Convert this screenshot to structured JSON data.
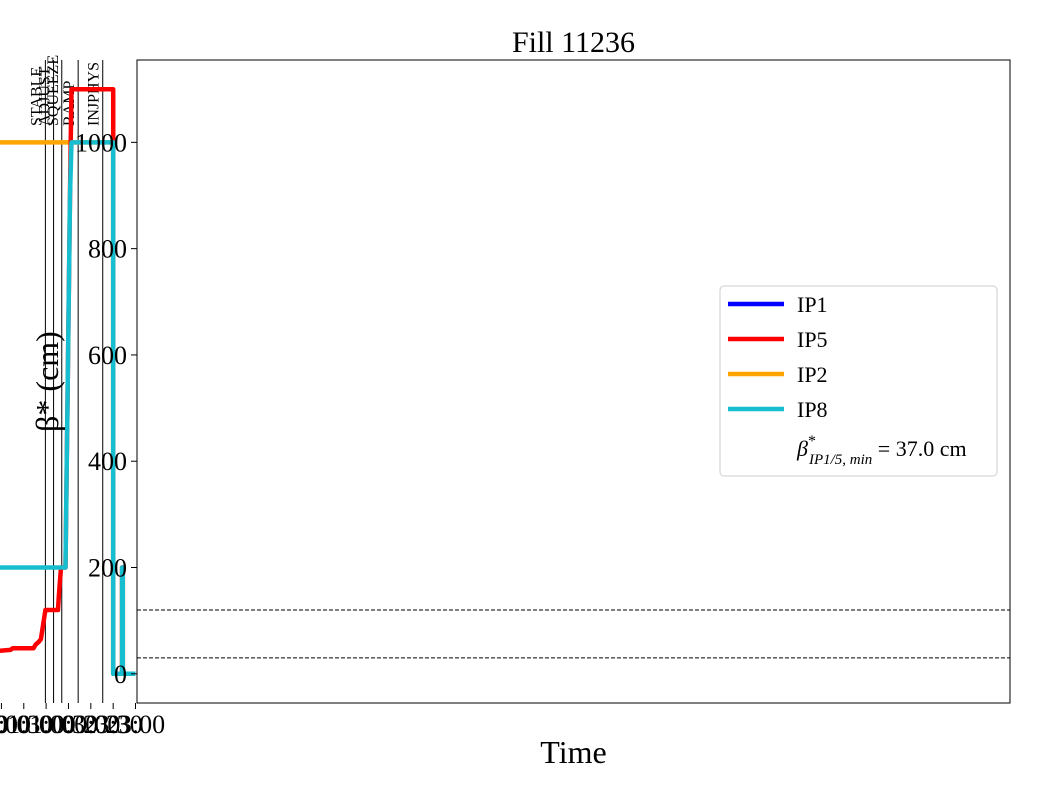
{
  "chart_data": {
    "type": "line",
    "title": "Fill 11236",
    "xlabel": "Time",
    "ylabel": "β* (cm)",
    "ylim": [
      -55,
      1155
    ],
    "xlim": [
      "22:58",
      "03:26"
    ],
    "x_ticks": [
      {
        "time": "23:00",
        "label": "23:00"
      },
      {
        "time": "23:30",
        "label": "23:30"
      },
      {
        "time": "24:00",
        "label": "00:00"
      },
      {
        "time": "24:30",
        "label": "00:30"
      },
      {
        "time": "25:00",
        "label": "01:00"
      },
      {
        "time": "25:30",
        "label": "01:30"
      },
      {
        "time": "26:00",
        "label": "02:00"
      },
      {
        "time": "26:30",
        "label": "02:30"
      },
      {
        "time": "27:00",
        "label": "03:00"
      }
    ],
    "y_ticks": [
      0,
      200,
      400,
      600,
      800,
      1000
    ],
    "grid": false,
    "legend_position": "right",
    "hlines": [
      30,
      120
    ],
    "phases": [
      {
        "label": "INJPHYS",
        "time": "23:44"
      },
      {
        "label": "RAMP",
        "time": "24:17"
      },
      {
        "label": "SQUEEZE",
        "time": "24:39"
      },
      {
        "label": "ADJUST",
        "time": "24:50"
      },
      {
        "label": "STABLE",
        "time": "25:01"
      }
    ],
    "annotation": {
      "symbol": "β",
      "superscript": "*",
      "subscript": "IP1/5, min",
      "text": " = 37.0 cm"
    },
    "series": [
      {
        "name": "IP1",
        "color": "#0000ff",
        "points": [
          [
            "27:03",
            0
          ],
          [
            "27:04",
            200
          ],
          [
            "27:05",
            0
          ],
          [
            "27:05",
            280
          ],
          [
            "27:06",
            330
          ],
          [
            "27:06",
            0
          ]
        ]
      },
      {
        "name": "IP5",
        "color": "#ff0000",
        "points": [
          [
            "23:00",
            0
          ],
          [
            "23:17",
            0
          ],
          [
            "23:17",
            200
          ],
          [
            "23:18",
            200
          ],
          [
            "23:18",
            0
          ],
          [
            "23:30",
            0
          ],
          [
            "23:30",
            1100
          ],
          [
            "24:26",
            1100
          ],
          [
            "24:27",
            1000
          ],
          [
            "24:28",
            900
          ],
          [
            "24:34",
            200
          ],
          [
            "24:40",
            200
          ],
          [
            "24:43",
            145
          ],
          [
            "24:44",
            120
          ],
          [
            "24:58",
            120
          ],
          [
            "25:01",
            120
          ],
          [
            "25:07",
            65
          ],
          [
            "25:10",
            60
          ],
          [
            "25:14",
            55
          ],
          [
            "25:17",
            48
          ],
          [
            "25:45",
            48
          ],
          [
            "25:48",
            45
          ],
          [
            "26:15",
            42
          ],
          [
            "26:50",
            40
          ],
          [
            "27:01",
            37
          ],
          [
            "27:03",
            37
          ],
          [
            "27:04",
            200
          ],
          [
            "27:05",
            37
          ],
          [
            "27:07",
            200
          ],
          [
            "27:08",
            0
          ],
          [
            "27:09",
            0
          ]
        ]
      },
      {
        "name": "IP2",
        "color": "#ffa500",
        "points": [
          [
            "23:00",
            0
          ],
          [
            "23:17",
            0
          ],
          [
            "23:17",
            200
          ],
          [
            "23:18",
            200
          ],
          [
            "23:18",
            0
          ],
          [
            "23:30",
            0
          ],
          [
            "23:30",
            1000
          ],
          [
            "27:02",
            1000
          ],
          [
            "27:02",
            200
          ],
          [
            "27:03",
            0
          ],
          [
            "27:07",
            0
          ],
          [
            "27:07",
            1000
          ],
          [
            "27:08",
            0
          ],
          [
            "27:09",
            0
          ]
        ]
      },
      {
        "name": "IP8",
        "color": "#17becf",
        "points": [
          [
            "23:00",
            0
          ],
          [
            "23:17",
            0
          ],
          [
            "23:17",
            200
          ],
          [
            "23:18",
            200
          ],
          [
            "23:18",
            0
          ],
          [
            "23:30",
            0
          ],
          [
            "23:30",
            1000
          ],
          [
            "24:26",
            1000
          ],
          [
            "24:28",
            900
          ],
          [
            "24:34",
            200
          ],
          [
            "27:02",
            200
          ],
          [
            "27:02",
            0
          ],
          [
            "27:09",
            0
          ]
        ]
      }
    ]
  }
}
